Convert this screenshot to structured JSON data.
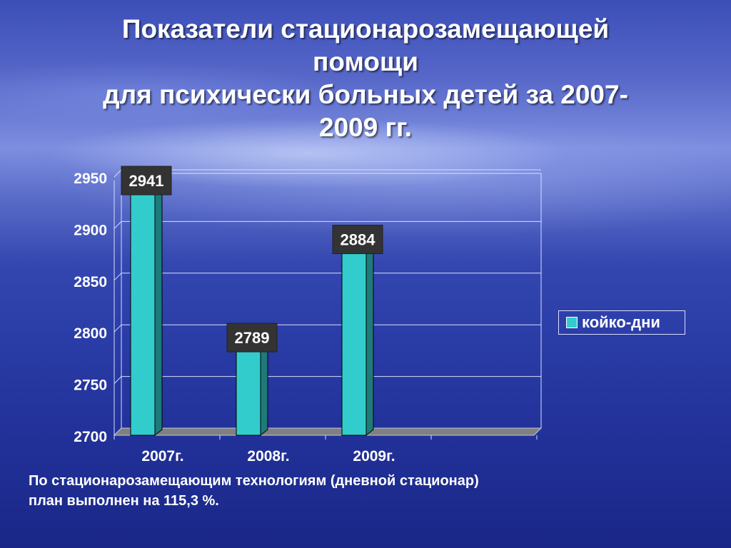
{
  "title_lines": [
    "Показатели стационарозамещающей",
    "помощи",
    "для психически больных детей за 2007-",
    "2009 гг."
  ],
  "note_lines": [
    "По стационарозамещающим технологиям (дневной стационар)",
    "план выполнен на 115,3  %."
  ],
  "colors": {
    "bar_front": "#33cccc",
    "bar_side": "#1f7a7a",
    "label_bg": "#333333",
    "gridline": "#d8defc",
    "floor": "#808080"
  },
  "chart_data": {
    "type": "bar",
    "categories": [
      "2007г.",
      "2008г.",
      "2009г."
    ],
    "series": [
      {
        "name": "койко-дни",
        "values": [
          2941,
          2789,
          2884
        ]
      }
    ],
    "data_labels": [
      "2941",
      "2789",
      "2884"
    ],
    "y_ticks": [
      "2700",
      "2750",
      "2800",
      "2850",
      "2900",
      "2950"
    ],
    "ylim": [
      2700,
      2950
    ],
    "grid": true,
    "legend_position": "right"
  }
}
